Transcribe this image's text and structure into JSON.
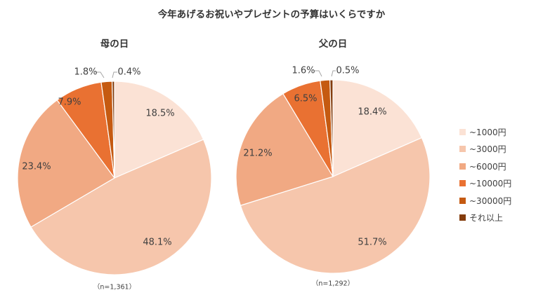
{
  "chart_data": [
    {
      "type": "pie",
      "title": "今年あげるお祝いやプレゼントの予算はいくらですか",
      "subtitle": "母の日",
      "note": "（n=1,361）",
      "categories": [
        "~1000円",
        "~3000円",
        "~6000円",
        "~10000円",
        "~30000円",
        "それ以上"
      ],
      "values": [
        18.5,
        48.1,
        23.4,
        7.9,
        1.8,
        0.4
      ],
      "labels": [
        "18.5%",
        "48.1%",
        "23.4%",
        "7.9%",
        "1.8%",
        "0.4%"
      ],
      "start_angle": "12 o'clock",
      "direction": "clockwise",
      "legend_position": "right"
    },
    {
      "type": "pie",
      "title": "今年あげるお祝いやプレゼントの予算はいくらですか",
      "subtitle": "父の日",
      "note": "（n=1,292）",
      "categories": [
        "~1000円",
        "~3000円",
        "~6000円",
        "~10000円",
        "~30000円",
        "それ以上"
      ],
      "values": [
        18.4,
        51.7,
        21.2,
        6.5,
        1.6,
        0.5
      ],
      "labels": [
        "18.4%",
        "51.7%",
        "21.2%",
        "6.5%",
        "1.6%",
        "0.5%"
      ],
      "start_angle": "12 o'clock",
      "direction": "clockwise",
      "legend_position": "right"
    }
  ],
  "title": "今年あげるお祝いやプレゼントの予算はいくらですか",
  "pies": [
    {
      "subtitle": "母の日",
      "note": "（n=1,361）"
    },
    {
      "subtitle": "父の日",
      "note": "（n=1,292）"
    }
  ],
  "legend": {
    "items": [
      {
        "label": "~1000円"
      },
      {
        "label": "~3000円"
      },
      {
        "label": "~6000円"
      },
      {
        "label": "~10000円"
      },
      {
        "label": "~30000円"
      },
      {
        "label": "それ以上"
      }
    ]
  },
  "colors": {
    "slices": [
      "#fbe2d5",
      "#f6c6ac",
      "#f1a983",
      "#e97132",
      "#c55a11",
      "#843c0c"
    ],
    "text": "#404040",
    "leader": "#a6a6a6",
    "slice_border": "#ffffff"
  }
}
